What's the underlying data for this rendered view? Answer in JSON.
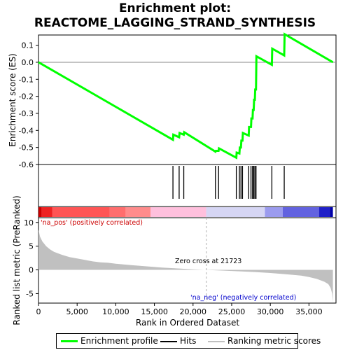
{
  "title_line1": "Enrichment plot:",
  "title_line2": "REACTOME_LAGGING_STRAND_SYNTHESIS",
  "colors": {
    "es_curve": "#00ff00",
    "hits": "#000000",
    "metric_fill": "#c0c0c0",
    "pos_label": "#cc0000",
    "neg_label": "#0000cc",
    "zero_line": "#b0b0b0"
  },
  "chart_data": [
    {
      "type": "line",
      "name": "enrichment-score",
      "ylabel": "Enrichment score (ES)",
      "ylim": [
        -0.6,
        0.16
      ],
      "xlim": [
        0,
        38500
      ],
      "yticks": [
        "0.1",
        "0.0",
        "-0.1",
        "-0.2",
        "-0.3",
        "-0.4",
        "-0.5",
        "-0.6"
      ],
      "ytick_values": [
        0.1,
        0.0,
        -0.1,
        -0.2,
        -0.3,
        -0.4,
        -0.5,
        -0.6
      ],
      "x": [
        0,
        17400,
        17450,
        18200,
        18250,
        18800,
        18850,
        22900,
        22950,
        23300,
        23350,
        25600,
        25650,
        26000,
        26050,
        26200,
        26250,
        26400,
        26450,
        27200,
        27250,
        27500,
        27550,
        27700,
        27750,
        27850,
        27900,
        28000,
        28050,
        28150,
        28200,
        30200,
        30250,
        31800,
        31850,
        38100
      ],
      "y": [
        0.0,
        -0.455,
        -0.425,
        -0.44,
        -0.415,
        -0.425,
        -0.41,
        -0.525,
        -0.52,
        -0.52,
        -0.505,
        -0.56,
        -0.53,
        -0.535,
        -0.5,
        -0.5,
        -0.46,
        -0.46,
        -0.415,
        -0.43,
        -0.38,
        -0.38,
        -0.33,
        -0.33,
        -0.28,
        -0.28,
        -0.22,
        -0.22,
        -0.16,
        -0.16,
        0.035,
        -0.015,
        0.08,
        0.04,
        0.165,
        0.0
      ]
    },
    {
      "type": "scatter",
      "name": "hits",
      "x": [
        17400,
        18200,
        18800,
        22900,
        23300,
        25600,
        26000,
        26200,
        26400,
        27200,
        27500,
        27700,
        27850,
        28000,
        28150,
        30200,
        31800
      ]
    },
    {
      "type": "area",
      "name": "ranked-list-metric",
      "xlabel": "Rank in Ordered Dataset",
      "ylabel": "Ranked list metric (PreRanked)",
      "ylim": [
        -7,
        11
      ],
      "xlim": [
        0,
        38500
      ],
      "yticks": [
        "10",
        "5",
        "0",
        "-5"
      ],
      "ytick_values": [
        10,
        5,
        0,
        -5
      ],
      "xticks": [
        "0",
        "5,000",
        "10,000",
        "15,000",
        "20,000",
        "25,000",
        "30,000",
        "35,000"
      ],
      "xtick_values": [
        0,
        5000,
        10000,
        15000,
        20000,
        25000,
        30000,
        35000
      ],
      "x": [
        0,
        200,
        500,
        1000,
        1500,
        2000,
        3000,
        4000,
        5000,
        6000,
        7000,
        8000,
        9000,
        10000,
        12000,
        14000,
        16000,
        18000,
        20000,
        21723,
        24000,
        26000,
        28000,
        30000,
        32000,
        34000,
        35000,
        36000,
        37000,
        37500,
        37800,
        38000,
        38100
      ],
      "values": [
        8.5,
        7.0,
        6.0,
        5.0,
        4.3,
        3.8,
        3.2,
        2.7,
        2.4,
        2.1,
        1.8,
        1.6,
        1.5,
        1.3,
        1.0,
        0.75,
        0.5,
        0.3,
        0.12,
        0.0,
        -0.15,
        -0.3,
        -0.45,
        -0.65,
        -0.9,
        -1.2,
        -1.5,
        -1.9,
        -2.5,
        -3.0,
        -3.8,
        -5.0,
        -6.8
      ]
    }
  ],
  "annotations": {
    "pos_label": "'na_pos' (positively correlated)",
    "neg_label": "'na_neg' (negatively correlated)",
    "zero_cross": "Zero cross at 21723"
  },
  "legend": {
    "items": [
      {
        "label": "Enrichment profile",
        "color": "#00ff00"
      },
      {
        "label": "Hits",
        "color": "#000000"
      },
      {
        "label": "Ranking metric scores",
        "color": "#c0c0c0"
      }
    ]
  },
  "color_bar": {
    "segments": [
      {
        "from": 0,
        "to": 400,
        "color": "#cc0000"
      },
      {
        "from": 400,
        "to": 1800,
        "color": "#ee2222"
      },
      {
        "from": 1800,
        "to": 9200,
        "color": "#ff5555"
      },
      {
        "from": 9200,
        "to": 11300,
        "color": "#ff6e6e"
      },
      {
        "from": 11300,
        "to": 14500,
        "color": "#ff8c8c"
      },
      {
        "from": 14500,
        "to": 21700,
        "color": "#ffc0dd"
      },
      {
        "from": 21700,
        "to": 29300,
        "color": "#d6d6f4"
      },
      {
        "from": 29300,
        "to": 31600,
        "color": "#9b9bee"
      },
      {
        "from": 31600,
        "to": 36300,
        "color": "#6262e0"
      },
      {
        "from": 36300,
        "to": 37700,
        "color": "#2020c8"
      },
      {
        "from": 37700,
        "to": 38100,
        "color": "#0000a8"
      }
    ]
  }
}
